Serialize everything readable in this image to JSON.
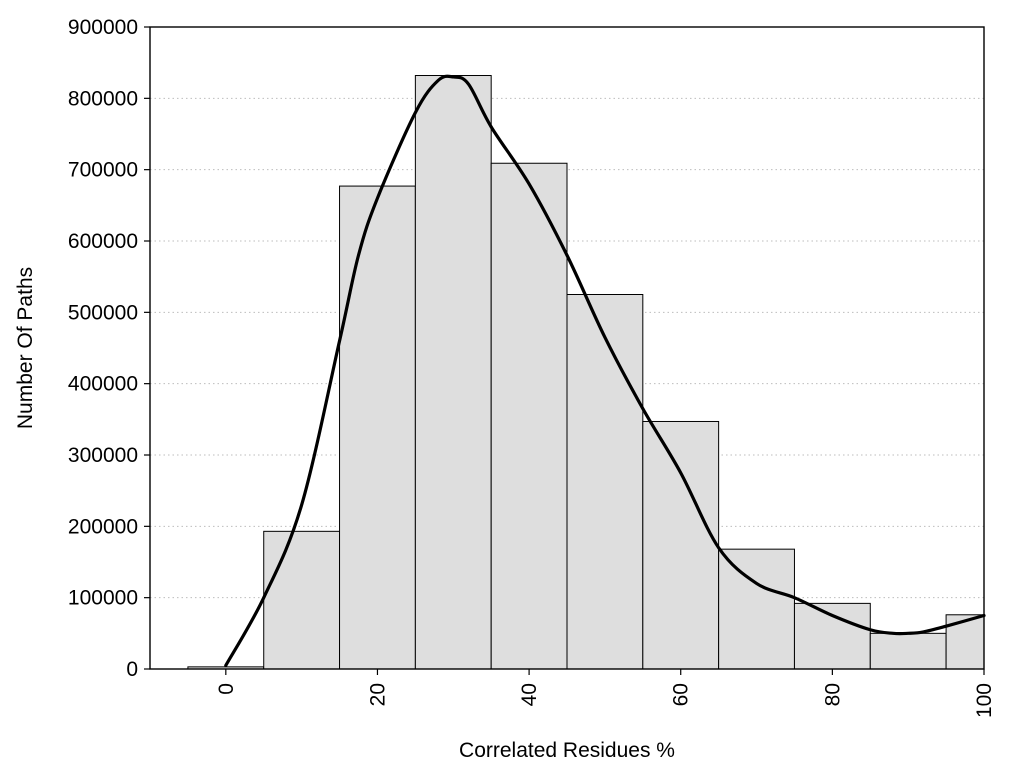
{
  "chart_data": {
    "type": "bar",
    "title": "",
    "xlabel": "Correlated Residues %",
    "ylabel": "Number Of Paths",
    "xlim": [
      -10,
      100
    ],
    "ylim": [
      0,
      900000
    ],
    "x_ticks": [
      0,
      20,
      40,
      60,
      80,
      100
    ],
    "y_ticks": [
      0,
      100000,
      200000,
      300000,
      400000,
      500000,
      600000,
      700000,
      800000,
      900000
    ],
    "grid": "horizontal dotted",
    "bin_width": 10,
    "bins": [
      {
        "center": 0,
        "value": 3000
      },
      {
        "center": 10,
        "value": 193000
      },
      {
        "center": 20,
        "value": 677000
      },
      {
        "center": 30,
        "value": 832000
      },
      {
        "center": 40,
        "value": 709000
      },
      {
        "center": 50,
        "value": 525000
      },
      {
        "center": 60,
        "value": 347000
      },
      {
        "center": 70,
        "value": 168000
      },
      {
        "center": 80,
        "value": 92000
      },
      {
        "center": 90,
        "value": 50000
      },
      {
        "center": 100,
        "value": 76000
      }
    ],
    "density_curve": {
      "x": [
        0,
        5,
        10,
        15,
        17.5,
        20,
        25,
        28,
        30,
        32,
        35,
        40,
        45,
        50,
        55,
        60,
        65,
        70,
        75,
        80,
        85,
        88,
        90,
        92,
        95,
        100
      ],
      "y": [
        5000,
        100000,
        230000,
        460000,
        580000,
        660000,
        780000,
        825000,
        830000,
        820000,
        760000,
        680000,
        580000,
        465000,
        365000,
        275000,
        170000,
        120000,
        100000,
        75000,
        55000,
        50000,
        50000,
        52000,
        60000,
        75000
      ]
    },
    "colors": {
      "bar_fill": "#dedede",
      "bar_stroke": "#000000",
      "curve": "#000000",
      "grid": "#bdbdbd"
    }
  }
}
